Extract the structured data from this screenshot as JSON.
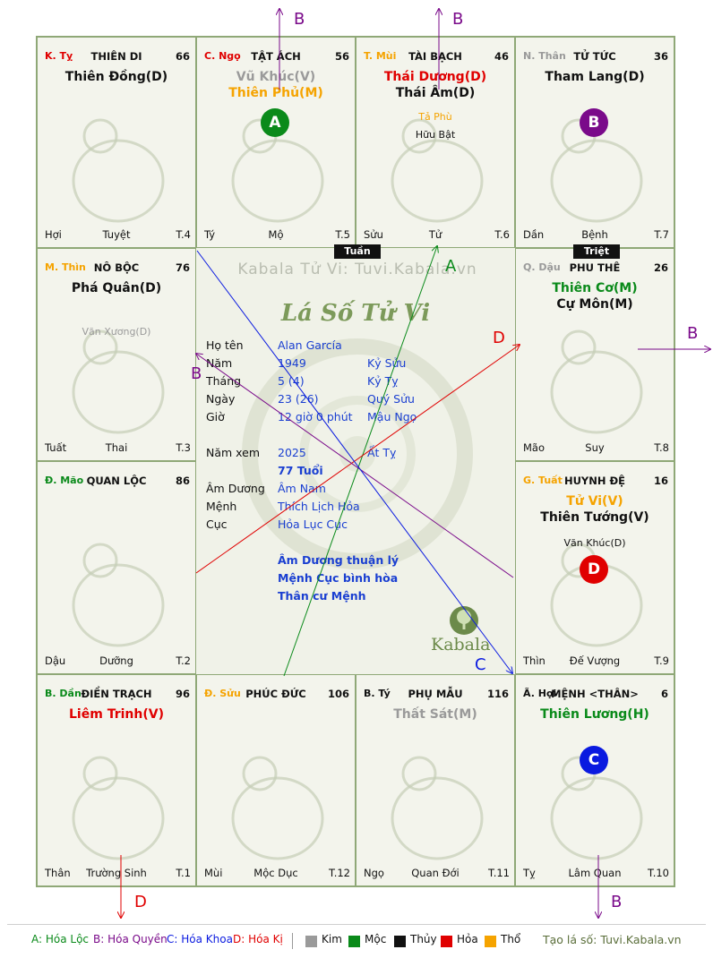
{
  "watermark": "Kabala Tử Vi: Tuvi.Kabala.vn",
  "logo_title": "Lá Số Tử Vi",
  "logo_brand": "Kabala",
  "center_tags": {
    "tuan": "Tuần",
    "triet": "Triệt"
  },
  "palaces": [
    {
      "branch": "K. Tỵ",
      "branch_color": "#e00000",
      "name": "THIÊN DI",
      "num": "66",
      "stars": [
        {
          "t": "Thiên Đồng(D)",
          "c": "#111111"
        }
      ],
      "minors": [],
      "bl": "Hợi",
      "bc": "Tuyệt",
      "br": "T.4"
    },
    {
      "branch": "C. Ngọ",
      "branch_color": "#e00000",
      "name": "TẬT ÁCH",
      "num": "56",
      "stars": [
        {
          "t": "Vũ Khúc(V)",
          "c": "#9a9a9a"
        },
        {
          "t": "Thiên Phủ(M)",
          "c": "#f5a300"
        }
      ],
      "minors": [],
      "circle": {
        "label": "A",
        "color": "#0a8a1a"
      },
      "bl": "Tý",
      "bc": "Mộ",
      "br": "T.5"
    },
    {
      "branch": "T. Mùi",
      "branch_color": "#f5a300",
      "name": "TÀI BẠCH",
      "num": "46",
      "stars": [
        {
          "t": "Thái Dương(D)",
          "c": "#e00000"
        },
        {
          "t": "Thái Âm(D)",
          "c": "#111111"
        }
      ],
      "minors": [
        {
          "t": "Tả Phù",
          "c": "#f5a300"
        },
        {
          "t": "Hữu Bật",
          "c": "#111111"
        }
      ],
      "bl": "Sửu",
      "bc": "Tử",
      "br": "T.6"
    },
    {
      "branch": "N. Thân",
      "branch_color": "#9a9a9a",
      "name": "TỬ TỨC",
      "num": "36",
      "stars": [
        {
          "t": "Tham Lang(D)",
          "c": "#111111"
        }
      ],
      "minors": [],
      "circle": {
        "label": "B",
        "color": "#7a0a8a"
      },
      "bl": "Dần",
      "bc": "Bệnh",
      "br": "T.7"
    },
    {
      "branch": "M. Thìn",
      "branch_color": "#f5a300",
      "name": "NÔ BỘC",
      "num": "76",
      "stars": [
        {
          "t": "Phá Quân(D)",
          "c": "#111111"
        }
      ],
      "minors": [
        {
          "t": "Văn Xương(D)",
          "c": "#9a9a9a"
        }
      ],
      "bl": "Tuất",
      "bc": "Thai",
      "br": "T.3"
    },
    {
      "branch": "Q. Dậu",
      "branch_color": "#9a9a9a",
      "name": "PHU THÊ",
      "num": "26",
      "stars": [
        {
          "t": "Thiên Cơ(M)",
          "c": "#0a8a1a"
        },
        {
          "t": "Cự Môn(M)",
          "c": "#111111"
        }
      ],
      "minors": [],
      "bl": "Mão",
      "bc": "Suy",
      "br": "T.8"
    },
    {
      "branch": "Đ. Mão",
      "branch_color": "#0a8a1a",
      "name": "QUAN LỘC",
      "num": "86",
      "stars": [],
      "minors": [],
      "bl": "Dậu",
      "bc": "Dưỡng",
      "br": "T.2"
    },
    {
      "branch": "G. Tuất",
      "branch_color": "#f5a300",
      "name": "HUYNH ĐỆ",
      "num": "16",
      "stars": [
        {
          "t": "Tử Vi(V)",
          "c": "#f5a300"
        },
        {
          "t": "Thiên Tướng(V)",
          "c": "#111111"
        }
      ],
      "minors": [
        {
          "t": "Văn Khúc(D)",
          "c": "#111111"
        }
      ],
      "circle": {
        "label": "D",
        "color": "#e00000"
      },
      "bl": "Thìn",
      "bc": "Đế Vượng",
      "br": "T.9"
    },
    {
      "branch": "B. Dần",
      "branch_color": "#0a8a1a",
      "name": "ĐIỀN TRẠCH",
      "num": "96",
      "stars": [
        {
          "t": "Liêm Trinh(V)",
          "c": "#e00000"
        }
      ],
      "minors": [],
      "bl": "Thân",
      "bc": "Trường Sinh",
      "br": "T.1"
    },
    {
      "branch": "Đ. Sửu",
      "branch_color": "#f5a300",
      "name": "PHÚC ĐỨC",
      "num": "106",
      "stars": [],
      "minors": [],
      "bl": "Mùi",
      "bc": "Mộc Dục",
      "br": "T.12"
    },
    {
      "branch": "B. Tý",
      "branch_color": "#111111",
      "name": "PHỤ MẪU",
      "num": "116",
      "stars": [
        {
          "t": "Thất Sát(M)",
          "c": "#9a9a9a"
        }
      ],
      "minors": [],
      "bl": "Ngọ",
      "bc": "Quan Đới",
      "br": "T.11"
    },
    {
      "branch": "Ã. Hợi",
      "branch_color": "#111111",
      "name": "MỆNH <THÂN>",
      "num": "6",
      "stars": [
        {
          "t": "Thiên Lương(H)",
          "c": "#0a8a1a"
        }
      ],
      "minors": [],
      "circle": {
        "label": "C",
        "color": "#0a1ae0"
      },
      "bl": "Tỵ",
      "bc": "Lâm Quan",
      "br": "T.10"
    }
  ],
  "info": {
    "rows": [
      {
        "label": "Họ tên",
        "v1": "Alan García",
        "v2": ""
      },
      {
        "label": "Năm",
        "v1": "1949",
        "v2": "Kỷ Sửu"
      },
      {
        "label": "Tháng",
        "v1": "5  (4)",
        "v2": "Kỷ Tỵ"
      },
      {
        "label": "Ngày",
        "v1": "23  (26)",
        "v2": "Quý Sửu"
      },
      {
        "label": "Giờ",
        "v1": "12 giờ 0 phút",
        "v2": "Mậu Ngọ"
      }
    ],
    "nam_xem_label": "Năm xem",
    "nam_xem": "2025",
    "nam_xem_can": "Ất Tỵ",
    "tuoi": "77 Tuổi",
    "am_duong_label": "Âm Dương",
    "am_duong": "Âm Nam",
    "menh_label": "Mệnh",
    "menh": "Thích Lịch Hỏa",
    "cuc_label": "Cục",
    "cuc": "Hỏa Lục Cục",
    "notes": [
      "Âm Dương thuận lý",
      "Mệnh Cục bình hòa",
      "Thân cư Mệnh"
    ]
  },
  "arrow_labels": {
    "top_left": "B",
    "top_right": "B",
    "right": "B",
    "bottom_left": "D",
    "bottom_right": "B",
    "center_a": "A",
    "center_d": "D",
    "center_b": "B",
    "center_c": "C"
  },
  "legend": {
    "a": "A: Hóa Lộc",
    "b": "B: Hóa Quyền",
    "c": "C: Hóa Khoa",
    "d": "D: Hóa Kị",
    "kim": "Kim",
    "moc": "Mộc",
    "thuy": "Thủy",
    "hoa": "Hỏa",
    "tho": "Thổ",
    "credit": "Tạo lá số: Tuvi.Kabala.vn",
    "colors": {
      "a": "#0a8a1a",
      "b": "#7a0a8a",
      "c": "#0a1ae0",
      "d": "#e00000",
      "kim": "#9a9a9a",
      "moc": "#0a8a1a",
      "thuy": "#111111",
      "hoa": "#e00000",
      "tho": "#f5a300",
      "credit": "#5a6e3a"
    }
  }
}
